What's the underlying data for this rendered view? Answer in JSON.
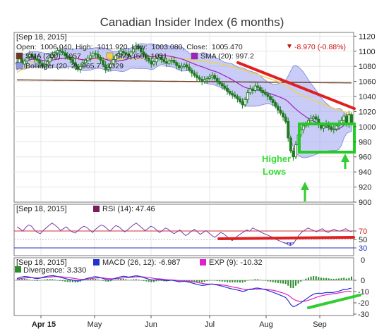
{
  "title": "Canadian Insider Index (6 months)",
  "price_panel": {
    "date_label": "[Sep 18, 2015]",
    "ohlc": {
      "open_label": "Open:",
      "open": "1006.040",
      "high_label": "High:",
      "high": "1011.920",
      "low_label": "Low:",
      "low": "1003.080",
      "close_label": "Close:",
      "close": "1005.470",
      "change": "-8.970 (-0.88%)"
    },
    "legend": [
      {
        "label": "SMA (200): 1057",
        "color": "#6b3a1e"
      },
      {
        "label": "SMA (50): 1031",
        "color": "#f2d24a"
      },
      {
        "label": "SMA (20): 997.2",
        "color": "#a020c0"
      },
      {
        "label": "Bollinger (20, 2): 965.7 - 1029",
        "color": "#8f96e8"
      }
    ],
    "y_ticks": [
      "1120",
      "1100",
      "1080",
      "1060",
      "1040",
      "1020",
      "1000",
      "980",
      "960",
      "940",
      "920",
      "900"
    ],
    "annotation": {
      "line1": "Higher",
      "line2": "Lows",
      "color": "#33dd33"
    }
  },
  "rsi_panel": {
    "date_label": "[Sep 18, 2015]",
    "legend": "RSI (14): 47.46",
    "y_ticks": [
      "70",
      "50",
      "30"
    ]
  },
  "macd_panel": {
    "date_label": "[Sep 18, 2015]",
    "legend_macd": "MACD (26, 12): -6.987",
    "legend_exp": "EXP (9): -10.32",
    "legend_div": "Divergence: 3.330",
    "y_ticks": [
      "0",
      "-10",
      "-20",
      "-30"
    ]
  },
  "x_ticks": [
    "Apr 15",
    "May",
    "Jun",
    "Jul",
    "Aug",
    "Sep"
  ],
  "colors": {
    "candle": "#1e7b1e",
    "trendline": "#e02020",
    "box": "#22cc22",
    "arrow": "#33cc33",
    "rsi": "#7a3aa8",
    "macd": "#2233cc",
    "exp": "#dd22cc",
    "divergence": "#2e8b2e"
  },
  "chart_data": [
    {
      "type": "candlestick",
      "title": "Canadian Insider Index (6 months)",
      "ylim": [
        900,
        1125
      ],
      "x_ticks": [
        "Apr 15",
        "May",
        "Jun",
        "Jul",
        "Aug",
        "Sep"
      ],
      "close": [
        1085,
        1090,
        1083,
        1087,
        1092,
        1096,
        1093,
        1090,
        1088,
        1084,
        1080,
        1083,
        1086,
        1092,
        1095,
        1098,
        1101,
        1100,
        1098,
        1094,
        1092,
        1089,
        1085,
        1080,
        1076,
        1080,
        1085,
        1088,
        1091,
        1094,
        1097,
        1096,
        1092,
        1088,
        1082,
        1076,
        1079,
        1083,
        1089,
        1094,
        1097,
        1100,
        1098,
        1096,
        1094,
        1099,
        1103,
        1107,
        1104,
        1099,
        1095,
        1091,
        1087,
        1083,
        1086,
        1090,
        1092,
        1089,
        1086,
        1084,
        1087,
        1088,
        1085,
        1081,
        1078,
        1080,
        1082,
        1079,
        1075,
        1071,
        1068,
        1065,
        1063,
        1060,
        1062,
        1064,
        1066,
        1068,
        1064,
        1060,
        1057,
        1054,
        1051,
        1047,
        1044,
        1042,
        1040,
        1037,
        1033,
        1029,
        1036,
        1045,
        1050,
        1048,
        1054,
        1052,
        1048,
        1045,
        1043,
        1040,
        1036,
        1032,
        1027,
        1022,
        1018,
        1013,
        1007,
        985,
        968,
        960,
        976,
        989,
        996,
        1001,
        1004,
        1008,
        1011,
        1013,
        1010,
        1003,
        998,
        1001,
        1004,
        1000,
        996,
        997,
        1001,
        1005,
        1008,
        1014,
        1003,
        1016,
        1005
      ],
      "sma200": [
        1062,
        1058
      ],
      "sma50": [
        1072,
        1091,
        1070,
        1031
      ],
      "sma20": [
        1078,
        1090,
        1062,
        997
      ],
      "bollinger": [
        965.7,
        1029
      ],
      "trendline": [
        [
          1085,
          "Jul 20"
        ],
        [
          1024,
          "Sep 18"
        ]
      ]
    },
    {
      "type": "line",
      "name": "RSI (14)",
      "ylim": [
        10,
        90
      ],
      "y_ticks": [
        70,
        50,
        30
      ],
      "last": 47.46,
      "values": [
        55,
        52,
        48,
        54,
        58,
        56,
        50,
        46,
        44,
        49,
        53,
        57,
        61,
        58,
        54,
        49,
        52,
        55,
        50,
        47,
        45,
        49,
        53,
        56,
        54,
        50,
        46,
        51,
        55,
        58,
        56,
        52,
        48,
        53,
        57,
        55,
        51,
        47,
        50,
        54,
        58,
        61,
        57,
        53,
        49,
        52,
        56,
        54,
        50,
        46,
        49,
        53,
        51,
        47,
        44,
        47,
        50,
        45,
        41,
        44,
        48,
        51,
        47,
        43,
        46,
        49,
        45,
        41,
        38,
        42,
        46,
        44,
        40,
        36,
        33,
        37,
        41,
        44,
        47,
        50,
        48,
        53,
        51,
        49,
        46,
        44,
        42,
        40,
        38,
        35,
        33,
        31,
        29,
        27,
        25,
        28,
        35,
        42,
        47,
        50,
        53,
        51,
        49,
        47,
        50,
        52,
        48,
        46,
        49,
        51,
        49,
        48,
        50,
        52,
        49,
        47
      ]
    },
    {
      "type": "line",
      "name": "MACD",
      "ylim": [
        -30,
        10
      ],
      "y_ticks": [
        0,
        -10,
        -20,
        -30
      ],
      "macd_last": -6.987,
      "exp_last": -10.32,
      "divergence_last": 3.33,
      "macd": [
        1.5,
        2.3,
        3.0,
        3.4,
        3.2,
        2.8,
        2.3,
        1.8,
        1.5,
        1.9,
        2.5,
        3.1,
        3.6,
        3.9,
        4.1,
        3.8,
        3.3,
        2.7,
        2.2,
        1.6,
        1.0,
        0.6,
        0.2,
        -0.3,
        -0.6,
        -0.2,
        0.5,
        1.2,
        1.8,
        2.4,
        2.9,
        3.2,
        2.9,
        2.3,
        1.6,
        0.8,
        0.3,
        0.5,
        1.2,
        1.9,
        2.6,
        3.2,
        3.6,
        3.3,
        2.8,
        3.1,
        3.6,
        4.0,
        3.7,
        3.1,
        2.4,
        1.7,
        1.0,
        0.4,
        0.2,
        0.5,
        0.8,
        0.5,
        0.0,
        -0.4,
        -0.2,
        0.1,
        -0.3,
        -0.8,
        -1.3,
        -1.1,
        -0.8,
        -1.2,
        -1.8,
        -2.4,
        -3.0,
        -3.6,
        -4.1,
        -4.6,
        -4.4,
        -4.0,
        -3.6,
        -3.3,
        -3.7,
        -4.2,
        -4.7,
        -5.2,
        -5.8,
        -6.5,
        -7.2,
        -7.7,
        -8.1,
        -8.6,
        -9.2,
        -9.8,
        -9.4,
        -8.5,
        -7.8,
        -7.6,
        -7.0,
        -6.9,
        -7.3,
        -7.8,
        -8.3,
        -9.0,
        -9.8,
        -10.6,
        -11.5,
        -12.4,
        -13.3,
        -14.2,
        -15.3,
        -18.0,
        -21.5,
        -23.5,
        -22.6,
        -21.4,
        -20.0,
        -18.4,
        -16.8,
        -15.2,
        -13.6,
        -12.4,
        -11.6,
        -11.5,
        -11.6,
        -11.3,
        -10.9,
        -10.8,
        -10.9,
        -10.7,
        -10.2,
        -9.6,
        -8.9,
        -8.0,
        -8.3,
        -7.4,
        -6.987
      ],
      "exp": [
        1.0,
        1.3,
        1.7,
        2.0,
        2.2,
        2.3,
        2.3,
        2.2,
        2.1,
        2.1,
        2.2,
        2.4,
        2.6,
        2.9,
        3.1,
        3.3,
        3.3,
        3.2,
        3.0,
        2.8,
        2.5,
        2.2,
        1.9,
        1.5,
        1.1,
        0.9,
        0.8,
        0.9,
        1.1,
        1.4,
        1.7,
        2.0,
        2.2,
        2.2,
        2.1,
        1.8,
        1.5,
        1.3,
        1.3,
        1.4,
        1.6,
        1.9,
        2.2,
        2.4,
        2.5,
        2.6,
        2.8,
        3.0,
        3.1,
        3.1,
        3.0,
        2.7,
        2.4,
        2.1,
        1.7,
        1.4,
        1.3,
        1.1,
        0.9,
        0.6,
        0.4,
        0.3,
        0.2,
        0.0,
        -0.3,
        -0.5,
        -0.6,
        -0.7,
        -0.9,
        -1.2,
        -1.5,
        -1.9,
        -2.3,
        -2.7,
        -3.1,
        -3.3,
        -3.4,
        -3.4,
        -3.5,
        -3.6,
        -3.8,
        -4.1,
        -4.4,
        -4.8,
        -5.3,
        -5.8,
        -6.3,
        -6.7,
        -7.2,
        -7.7,
        -8.1,
        -8.2,
        -8.2,
        -8.1,
        -8.0,
        -7.8,
        -7.8,
        -7.8,
        -7.9,
        -8.1,
        -8.5,
        -8.9,
        -9.4,
        -10.0,
        -10.6,
        -11.3,
        -12.1,
        -13.2,
        -14.8,
        -16.6,
        -17.8,
        -18.5,
        -18.8,
        -18.7,
        -18.3,
        -17.7,
        -16.9,
        -16.1,
        -15.2,
        -14.5,
        -13.9,
        -13.4,
        -12.9,
        -12.5,
        -12.2,
        -11.9,
        -11.6,
        -11.2,
        -10.8,
        -10.3,
        -9.9,
        -9.5,
        -10.32
      ]
    }
  ]
}
